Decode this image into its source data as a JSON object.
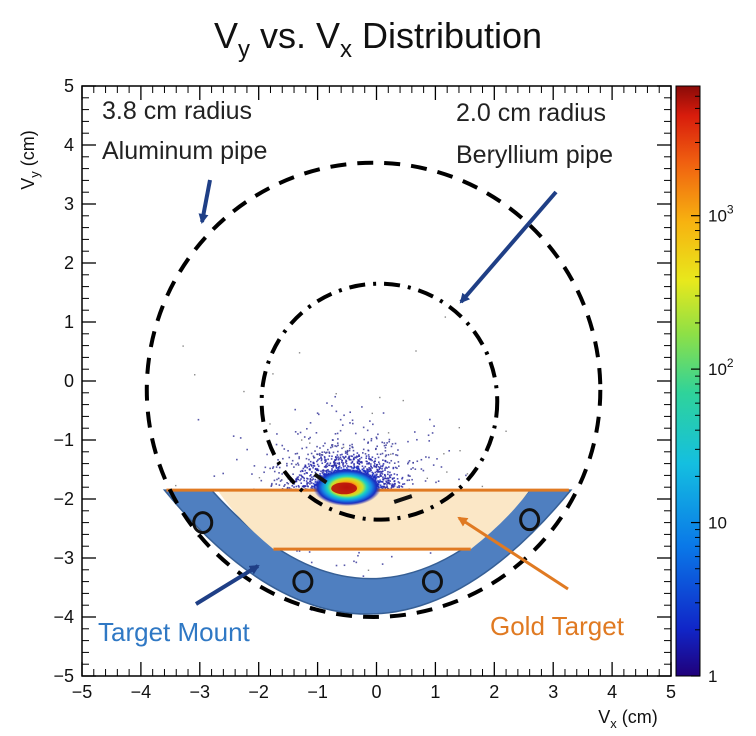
{
  "chart_data": {
    "type": "heatmap",
    "title": "V_y vs. V_x Distribution",
    "title_main_1": "V",
    "title_sub_1": "y",
    "title_mid": " vs. V",
    "title_sub_2": "x",
    "title_end": " Distribution",
    "xlabel_main": "V",
    "xlabel_sub": "x",
    "xlabel_unit": " (cm)",
    "ylabel_main": "V",
    "ylabel_sub": "y",
    "ylabel_unit": " (cm)",
    "xlim": [
      -5,
      5
    ],
    "ylim": [
      -5,
      5
    ],
    "x_ticks": [
      -5,
      -4,
      -3,
      -2,
      -1,
      0,
      1,
      2,
      3,
      4,
      5
    ],
    "y_ticks": [
      -5,
      -4,
      -3,
      -2,
      -1,
      0,
      1,
      2,
      3,
      4,
      5
    ],
    "x_tick_labels": [
      "−5",
      "−4",
      "−3",
      "−2",
      "−1",
      "0",
      "1",
      "2",
      "3",
      "4",
      "5"
    ],
    "y_tick_labels": [
      "−5",
      "−4",
      "−3",
      "−2",
      "−1",
      "0",
      "1",
      "2",
      "3",
      "4",
      "5"
    ],
    "colorbar": {
      "scale": "log",
      "range": [
        1,
        7000
      ],
      "ticks": [
        {
          "value": 1,
          "label": "1"
        },
        {
          "value": 10,
          "label": "10"
        },
        {
          "value": 100,
          "label": "10",
          "exp": "2"
        },
        {
          "value": 1000,
          "label": "10",
          "exp": "3"
        }
      ]
    },
    "hotspot": {
      "center_x": -0.5,
      "center_y": -1.8,
      "peak_counts": 7000
    },
    "circles": [
      {
        "name": "aluminum-pipe",
        "cx": -0.05,
        "cy": -0.15,
        "r": 3.85,
        "style": "dashed"
      },
      {
        "name": "beryllium-pipe",
        "cx": 0.05,
        "cy": -0.35,
        "r": 2.0,
        "style": "dash-dot"
      }
    ],
    "target_mount": {
      "y_top": -1.85,
      "outer_x_top": [
        -3.6,
        3.3
      ],
      "outer_bottom_y": -3.95,
      "inner_x_top": [
        -2.8,
        2.6
      ],
      "inner_bottom_y": -3.35,
      "holes": [
        {
          "x": -2.95,
          "y": -2.4
        },
        {
          "x": -1.25,
          "y": -3.4
        },
        {
          "x": 0.95,
          "y": -3.4
        },
        {
          "x": 2.6,
          "y": -2.35
        }
      ]
    },
    "gold_target": {
      "top_y": -1.85,
      "top_x": [
        -2.7,
        2.6
      ],
      "bottom_y": -2.85,
      "bottom_x": [
        -1.75,
        1.6
      ]
    },
    "annotations": {
      "aluminum_line1": "3.8 cm radius",
      "aluminum_line2": "Aluminum pipe",
      "beryllium_line1": "2.0 cm radius",
      "beryllium_line2": "Beryllium pipe",
      "target_mount": "Target Mount",
      "gold_target": "Gold Target"
    },
    "colors": {
      "mount": "#4f7fc0",
      "mount_edge": "#365f95",
      "gold_fill": "#fbe7c6",
      "gold_line": "#e07a22",
      "gold_label": "#e07a22",
      "mount_label": "#2f78c4",
      "arrow_blue": "#1f3f86"
    }
  }
}
